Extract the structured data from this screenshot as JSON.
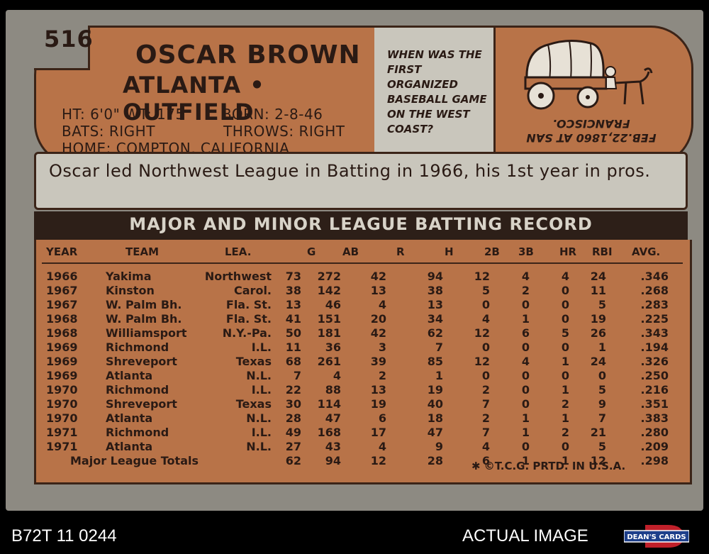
{
  "card": {
    "number": "516",
    "name": "OSCAR BROWN",
    "team_position": "ATLANTA • OUTFIELD",
    "ht_wt": "HT: 6'0\" WT: 175",
    "born": "BORN: 2-8-46",
    "bats": "BATS: RIGHT",
    "throws": "THROWS: RIGHT",
    "home": "HOME: COMPTON, CALIFORNIA"
  },
  "trivia": {
    "question": "WHEN WAS THE FIRST ORGANIZED BASEBALL GAME ON THE WEST COAST?",
    "answer": "FEB.22,1860 AT SAN FRANCISCO."
  },
  "cartoon_text": "Oscar led Northwest League in Batting in 1966, his 1st year in pros.",
  "record": {
    "title": "MAJOR AND MINOR LEAGUE BATTING RECORD",
    "columns": [
      "YEAR",
      "TEAM",
      "LEA.",
      "G",
      "AB",
      "R",
      "H",
      "2B",
      "3B",
      "HR",
      "RBI",
      "AVG."
    ],
    "rows": [
      [
        "1966",
        "Yakima",
        "Northwest",
        "73",
        "272",
        "42",
        "94",
        "12",
        "4",
        "4",
        "24",
        ".346"
      ],
      [
        "1967",
        "Kinston",
        "Carol.",
        "38",
        "142",
        "13",
        "38",
        "5",
        "2",
        "0",
        "11",
        ".268"
      ],
      [
        "1967",
        "W. Palm Bh.",
        "Fla. St.",
        "13",
        "46",
        "4",
        "13",
        "0",
        "0",
        "0",
        "5",
        ".283"
      ],
      [
        "1968",
        "W. Palm Bh.",
        "Fla. St.",
        "41",
        "151",
        "20",
        "34",
        "4",
        "1",
        "0",
        "19",
        ".225"
      ],
      [
        "1968",
        "Williamsport",
        "N.Y.-Pa.",
        "50",
        "181",
        "42",
        "62",
        "12",
        "6",
        "5",
        "26",
        ".343"
      ],
      [
        "1969",
        "Richmond",
        "I.L.",
        "11",
        "36",
        "3",
        "7",
        "0",
        "0",
        "0",
        "1",
        ".194"
      ],
      [
        "1969",
        "Shreveport",
        "Texas",
        "68",
        "261",
        "39",
        "85",
        "12",
        "4",
        "1",
        "24",
        ".326"
      ],
      [
        "1969",
        "Atlanta",
        "N.L.",
        "7",
        "4",
        "2",
        "1",
        "0",
        "0",
        "0",
        "0",
        ".250"
      ],
      [
        "1970",
        "Richmond",
        "I.L.",
        "22",
        "88",
        "13",
        "19",
        "2",
        "0",
        "1",
        "5",
        ".216"
      ],
      [
        "1970",
        "Shreveport",
        "Texas",
        "30",
        "114",
        "19",
        "40",
        "7",
        "0",
        "2",
        "9",
        ".351"
      ],
      [
        "1970",
        "Atlanta",
        "N.L.",
        "28",
        "47",
        "6",
        "18",
        "2",
        "1",
        "1",
        "7",
        ".383"
      ],
      [
        "1971",
        "Richmond",
        "I.L.",
        "49",
        "168",
        "17",
        "47",
        "7",
        "1",
        "2",
        "21",
        ".280"
      ],
      [
        "1971",
        "Atlanta",
        "N.L.",
        "27",
        "43",
        "4",
        "9",
        "4",
        "0",
        "0",
        "5",
        ".209"
      ]
    ],
    "totals": [
      "Major League Totals",
      "62",
      "94",
      "12",
      "28",
      "6",
      "1",
      "1",
      "12",
      ".298"
    ],
    "copyright": "✱ ©T.C.G. PRTD. IN U.S.A."
  },
  "footer": {
    "left": "B72T 11 0244",
    "right": "ACTUAL IMAGE",
    "logo": "DEAN'S CARDS"
  }
}
